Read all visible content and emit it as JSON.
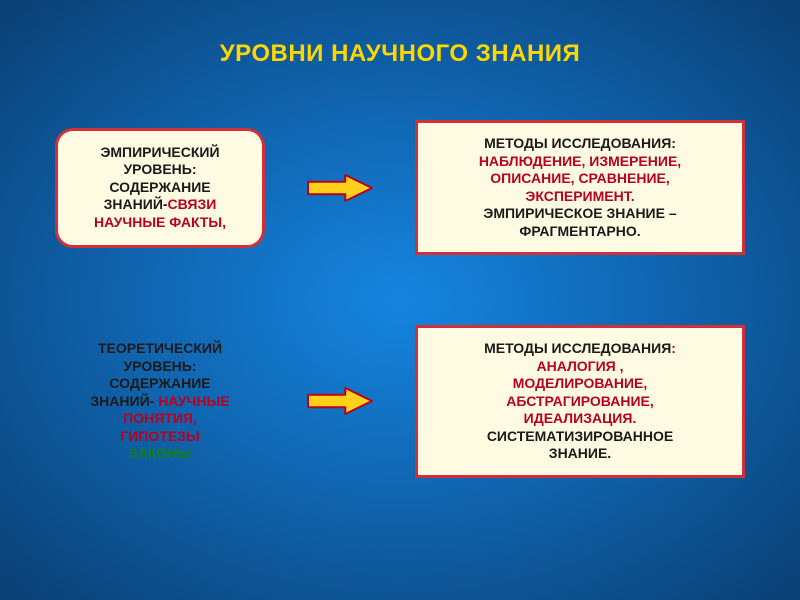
{
  "title": {
    "text": "УРОВНИ НАУЧНОГО ЗНАНИЯ",
    "color": "#ffd700",
    "fontsize": 24
  },
  "colors": {
    "box_bg": "#fefbe2",
    "box_border": "#d1303a",
    "text_black": "#1a1a1a",
    "text_emph1": "#b8001f",
    "text_emph2": "#157f1a",
    "arrow_fill": "#ffd11a",
    "arrow_stroke": "#b8001f"
  },
  "rows": [
    {
      "left": {
        "framed": true,
        "lines": [
          {
            "text": "ЭМПИРИЧЕСКИЙ",
            "color": "black"
          },
          {
            "text": "УРОВЕНЬ:",
            "color": "black"
          },
          {
            "text": "СОДЕРЖАНИЕ",
            "color": "black"
          },
          {
            "text": "ЗНАНИЙ-",
            "color": "black",
            "inline_next": true
          },
          {
            "text": "СВЯЗИ",
            "color": "emph1"
          },
          {
            "text": "НАУЧНЫЕ  ФАКТЫ,",
            "color": "emph1"
          }
        ]
      },
      "right": {
        "lines": [
          {
            "text": "МЕТОДЫ ИССЛЕДОВАНИЯ:",
            "color": "black"
          },
          {
            "text": "НАБЛЮДЕНИЕ, ИЗМЕРЕНИЕ,",
            "color": "emph1"
          },
          {
            "text": "ОПИСАНИЕ, СРАВНЕНИЕ,",
            "color": "emph1"
          },
          {
            "text": "ЭКСПЕРИМЕНТ.",
            "color": "emph1"
          },
          {
            "text": "ЭМПИРИЧЕСКОЕ ЗНАНИЕ –",
            "color": "black"
          },
          {
            "text": "ФРАГМЕНТАРНО.",
            "color": "black"
          }
        ]
      }
    },
    {
      "left": {
        "framed": false,
        "lines": [
          {
            "text": "ТЕОРЕТИЧЕСКИЙ",
            "color": "black"
          },
          {
            "text": "УРОВЕНЬ:",
            "color": "black"
          },
          {
            "text": "СОДЕРЖАНИЕ",
            "color": "black"
          },
          {
            "text": "ЗНАНИЙ- ",
            "color": "black",
            "inline_next": true
          },
          {
            "text": "НАУЧНЫЕ",
            "color": "emph1"
          },
          {
            "text": "ПОНЯТИЯ,",
            "color": "emph1"
          },
          {
            "text": "ГИПОТЕЗЫ",
            "color": "emph1"
          },
          {
            "text": "ЗАКОНЫ",
            "color": "emph2"
          }
        ]
      },
      "right": {
        "lines": [
          {
            "text": "МЕТОДЫ ИССЛЕДОВАНИЯ",
            "color": "black",
            "inline_next": true
          },
          {
            "text": ":",
            "color": "emph1"
          },
          {
            "text": "АНАЛОГИЯ ,",
            "color": "emph1"
          },
          {
            "text": "МОДЕЛИРОВАНИЕ,",
            "color": "emph1"
          },
          {
            "text": "АБСТРАГИРОВАНИЕ,",
            "color": "emph1"
          },
          {
            "text": "ИДЕАЛИЗАЦИЯ.",
            "color": "emph1"
          },
          {
            "text": "СИСТЕМАТИЗИРОВАННОЕ",
            "color": "black"
          },
          {
            "text": "ЗНАНИЕ.",
            "color": "black"
          }
        ]
      }
    }
  ],
  "arrow": {
    "width": 66,
    "height": 28
  }
}
